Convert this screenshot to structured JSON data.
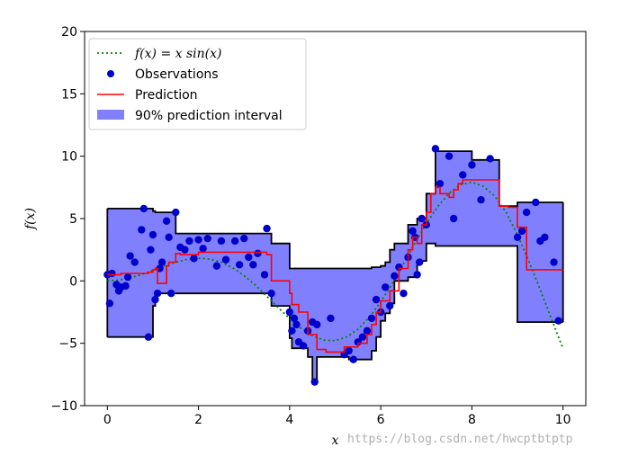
{
  "chart_data": {
    "type": "line",
    "title": "",
    "xlabel": "x",
    "ylabel": "f(x)",
    "xlim": [
      -0.5,
      10.5
    ],
    "ylim": [
      -10,
      20
    ],
    "xticks": [
      0,
      2,
      4,
      6,
      8,
      10
    ],
    "yticks": [
      -10,
      -5,
      0,
      5,
      10,
      15,
      20
    ],
    "xtick_labels": [
      "0",
      "2",
      "4",
      "6",
      "8",
      "10"
    ],
    "ytick_labels": [
      "−10",
      "−5",
      "0",
      "5",
      "10",
      "15",
      "20"
    ],
    "grid": false,
    "legend_position": "top-left",
    "colors": {
      "true_function": "#008000",
      "observations": "#0000cc",
      "prediction": "#ff0000",
      "interval_fill": "#8080ff",
      "interval_edge": "#000000"
    },
    "series": [
      {
        "name": "f(x) = x sin(x)",
        "kind": "dotted-line",
        "note": "true function sampled at x values",
        "x": [
          0,
          0.25,
          0.5,
          0.75,
          1,
          1.25,
          1.5,
          1.75,
          2,
          2.25,
          2.5,
          2.75,
          3,
          3.25,
          3.5,
          3.75,
          4,
          4.25,
          4.5,
          4.75,
          5,
          5.25,
          5.5,
          5.75,
          6,
          6.25,
          6.5,
          6.75,
          7,
          7.25,
          7.5,
          7.75,
          8,
          8.25,
          8.5,
          8.75,
          9,
          9.25,
          9.5,
          9.75,
          10
        ],
        "y": [
          0,
          0.06,
          0.24,
          0.51,
          0.84,
          1.19,
          1.5,
          1.72,
          1.82,
          1.75,
          1.5,
          1.05,
          0.42,
          -0.35,
          -1.23,
          -2.15,
          -3.03,
          -3.79,
          -4.4,
          -4.75,
          -4.79,
          -4.5,
          -3.88,
          -2.9,
          -1.68,
          -0.21,
          1.4,
          3.04,
          4.6,
          5.96,
          7.03,
          7.72,
          7.91,
          7.59,
          6.8,
          5.51,
          3.71,
          1.59,
          -0.71,
          -3.07,
          -5.44
        ]
      },
      {
        "name": "Observations",
        "kind": "points",
        "x": [
          0,
          0.05,
          0.1,
          0.2,
          0.25,
          0.3,
          0.4,
          0.45,
          0.5,
          0.6,
          0.75,
          0.8,
          0.9,
          0.95,
          1.0,
          1.05,
          1.1,
          1.15,
          1.2,
          1.3,
          1.35,
          1.4,
          1.5,
          1.6,
          1.7,
          1.8,
          1.9,
          2.0,
          2.1,
          2.2,
          2.4,
          2.5,
          2.6,
          2.8,
          2.9,
          3.0,
          3.1,
          3.2,
          3.3,
          3.45,
          3.5,
          3.6,
          4.0,
          4.05,
          4.1,
          4.15,
          4.2,
          4.3,
          4.4,
          4.5,
          4.55,
          4.6,
          4.9,
          5.2,
          5.3,
          5.4,
          5.5,
          5.6,
          5.7,
          5.8,
          5.9,
          6.0,
          6.1,
          6.2,
          6.3,
          6.4,
          6.5,
          6.6,
          6.7,
          6.75,
          6.8,
          6.85,
          6.9,
          7.0,
          7.2,
          7.3,
          7.5,
          7.6,
          7.8,
          8.0,
          8.2,
          8.4,
          9.0,
          9.1,
          9.2,
          9.4,
          9.5,
          9.6,
          9.8,
          9.9
        ],
        "y": [
          0.5,
          -1.8,
          0.6,
          -0.3,
          -0.8,
          -0.5,
          -0.4,
          0.3,
          2.0,
          1.5,
          4.1,
          5.8,
          -4.5,
          2.5,
          3.7,
          -1.5,
          -1.0,
          1.0,
          1.5,
          4.8,
          3.5,
          -1.0,
          5.5,
          2.7,
          2.5,
          3.2,
          1.8,
          3.3,
          2.6,
          3.4,
          1.2,
          3.2,
          1.7,
          3.2,
          1.3,
          3.4,
          1.9,
          1.3,
          2.2,
          0.5,
          4.2,
          -1.0,
          -2.5,
          -4.0,
          -3.0,
          -3.5,
          -4.9,
          -5.2,
          -4.0,
          -3.3,
          -8.1,
          -3.5,
          -3.0,
          -5.9,
          -5.6,
          -6.3,
          -4.9,
          -4.5,
          -4.0,
          -3.0,
          -1.5,
          -2.5,
          -0.5,
          -2.0,
          0.4,
          1.1,
          -1.0,
          1.9,
          4.0,
          3.5,
          0.5,
          1.5,
          5.0,
          4.5,
          10.6,
          7.8,
          10.0,
          5.0,
          8.5,
          9.3,
          6.5,
          9.8,
          3.5,
          4.0,
          5.5,
          6.3,
          3.2,
          3.5,
          1.5,
          -3.2
        ]
      },
      {
        "name": "Prediction",
        "kind": "step-line",
        "x": [
          0,
          0.3,
          0.6,
          0.9,
          1.0,
          1.05,
          1.1,
          1.3,
          1.35,
          1.5,
          1.6,
          2.0,
          3.5,
          3.6,
          4.0,
          4.05,
          4.2,
          4.4,
          4.6,
          4.8,
          5.2,
          5.5,
          5.7,
          5.8,
          5.9,
          6.0,
          6.2,
          6.4,
          6.6,
          6.7,
          6.8,
          6.9,
          7.0,
          7.1,
          7.2,
          7.3,
          7.5,
          7.6,
          7.7,
          7.8,
          8.0,
          8.6,
          8.8,
          9.0,
          9.2,
          10.0
        ],
        "y": [
          0.5,
          0.6,
          0.6,
          0.7,
          0.9,
          1.0,
          -0.2,
          1.2,
          1.5,
          2.2,
          2.1,
          2.3,
          2.1,
          0.0,
          -1.0,
          -1.9,
          -2.5,
          -4.3,
          -5.5,
          -5.7,
          -5.3,
          -5.0,
          -4.3,
          -3.5,
          -2.5,
          -1.6,
          -0.8,
          1.0,
          2.5,
          3.5,
          3.0,
          4.5,
          5.5,
          7.0,
          7.5,
          7.0,
          6.7,
          7.3,
          7.8,
          8.1,
          8.1,
          6.0,
          5.9,
          4.3,
          0.9,
          0.9
        ]
      },
      {
        "name": "90% prediction interval",
        "kind": "step-band",
        "x": [
          0,
          0.9,
          1.0,
          1.05,
          1.5,
          3.5,
          3.6,
          4.0,
          4.05,
          4.4,
          4.5,
          4.6,
          4.8,
          5.3,
          5.8,
          5.9,
          6.0,
          6.1,
          6.2,
          6.3,
          6.6,
          6.8,
          7.0,
          7.2,
          8.0,
          8.6,
          9.0,
          10.0
        ],
        "lower": [
          -4.5,
          -4.5,
          -2.0,
          -1.0,
          -1.0,
          -1.0,
          -2.0,
          -4.6,
          -5.4,
          -6.1,
          -8.1,
          -6.1,
          -6.1,
          -6.3,
          -5.6,
          -4.5,
          -3.2,
          -2.6,
          -1.8,
          0.0,
          0.3,
          1.6,
          3.0,
          2.8,
          2.8,
          2.8,
          -3.3,
          -3.3
        ],
        "upper": [
          5.8,
          5.8,
          5.6,
          5.5,
          3.8,
          3.8,
          3.0,
          1.0,
          1.0,
          1.0,
          1.0,
          1.0,
          1.0,
          1.0,
          1.1,
          1.1,
          1.2,
          1.5,
          2.5,
          3.0,
          4.5,
          5.0,
          7.0,
          10.4,
          9.7,
          6.0,
          6.3,
          6.3
        ]
      }
    ]
  },
  "legend": {
    "items": [
      {
        "label_prefix": "f(x) = x sin(x)"
      },
      {
        "label": "Observations"
      },
      {
        "label": "Prediction"
      },
      {
        "label": "90% prediction interval"
      }
    ]
  },
  "watermark": "https://blog.csdn.net/hwcptbtptp"
}
